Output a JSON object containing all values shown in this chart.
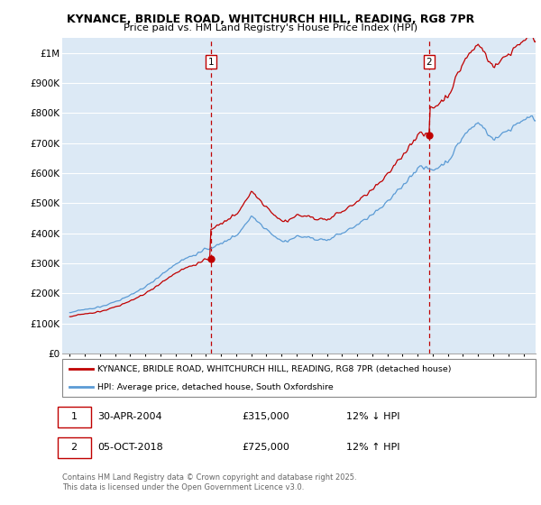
{
  "title": "KYNANCE, BRIDLE ROAD, WHITCHURCH HILL, READING, RG8 7PR",
  "subtitle": "Price paid vs. HM Land Registry's House Price Index (HPI)",
  "ylim": [
    0,
    1050000
  ],
  "yticks": [
    0,
    100000,
    200000,
    300000,
    400000,
    500000,
    600000,
    700000,
    800000,
    900000,
    1000000
  ],
  "ytick_labels": [
    "£0",
    "£100K",
    "£200K",
    "£300K",
    "£400K",
    "£500K",
    "£600K",
    "£700K",
    "£800K",
    "£900K",
    "£1M"
  ],
  "xlim_start": 1994.5,
  "xlim_end": 2025.8,
  "hpi_color": "#5b9bd5",
  "price_color": "#c00000",
  "dashed_color": "#c00000",
  "plot_bg": "#dce9f5",
  "grid_color": "#ffffff",
  "transaction1_date": "30-APR-2004",
  "transaction1_price": 315000,
  "transaction1_hpi_diff": "12% ↓ HPI",
  "transaction1_x": 2004.33,
  "transaction2_date": "05-OCT-2018",
  "transaction2_price": 725000,
  "transaction2_hpi_diff": "12% ↑ HPI",
  "transaction2_x": 2018.75,
  "legend_label1": "KYNANCE, BRIDLE ROAD, WHITCHURCH HILL, READING, RG8 7PR (detached house)",
  "legend_label2": "HPI: Average price, detached house, South Oxfordshire",
  "footer": "Contains HM Land Registry data © Crown copyright and database right 2025.\nThis data is licensed under the Open Government Licence v3.0."
}
